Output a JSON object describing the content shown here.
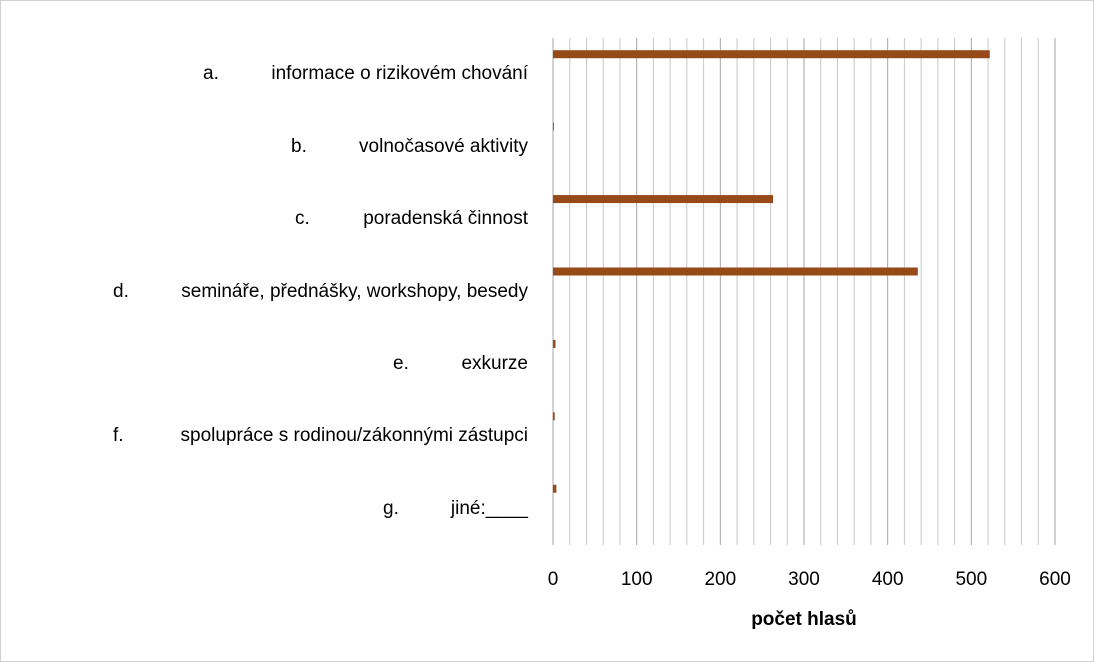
{
  "chart_data": {
    "type": "hbar",
    "category_markers": [
      "a.",
      "b.",
      "c.",
      "d.",
      "e.",
      "f.",
      "g."
    ],
    "categories": [
      "informace o rizikovém chování",
      "volnočasové aktivity",
      "poradenská činnost",
      "semináře, přednášky, workshopy, besedy",
      "exkurze",
      "spolupráce s rodinou/zákonnými zástupci",
      "jiné:____"
    ],
    "values": [
      522,
      1,
      263,
      436,
      3,
      2,
      4
    ],
    "color": "#954a17",
    "xlabel": "počet hlasů",
    "xlim": [
      0,
      600
    ],
    "xticks": [
      0,
      100,
      200,
      300,
      400,
      500,
      600
    ],
    "minor_xticks": [
      20,
      40,
      60,
      80,
      120,
      140,
      160,
      180,
      220,
      240,
      260,
      280,
      320,
      340,
      360,
      380,
      420,
      440,
      460,
      480,
      520,
      540,
      560,
      580
    ],
    "grid": true
  }
}
